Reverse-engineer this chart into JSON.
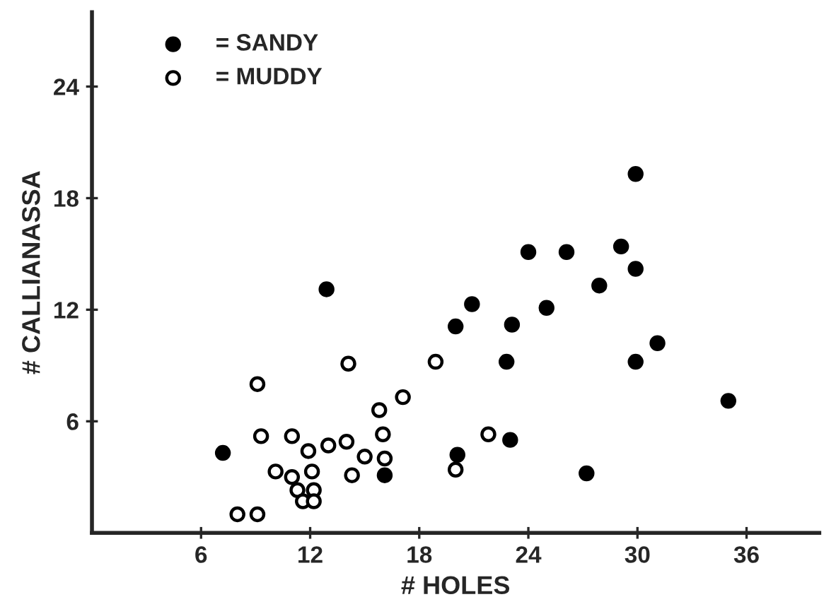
{
  "chart_data": {
    "type": "scatter",
    "xlabel": "# HOLES",
    "ylabel": "# CALLIANASSA",
    "xlim": [
      0,
      40
    ],
    "ylim": [
      0,
      28
    ],
    "xticks": [
      6,
      12,
      18,
      24,
      30,
      36
    ],
    "yticks": [
      6,
      12,
      18,
      24
    ],
    "grid": false,
    "legend": "top left",
    "marker": "circle",
    "series": [
      {
        "name": "= SANDY",
        "color": "#000000",
        "x": [
          7.2,
          12.9,
          16.1,
          29.9,
          24.0,
          26.1,
          29.1,
          29.9,
          27.9,
          20.9,
          25.0,
          20.0,
          23.1,
          22.8,
          29.9,
          31.1,
          35.0,
          23.0,
          20.1,
          27.2
        ],
        "values": [
          4.3,
          13.1,
          3.1,
          19.3,
          15.1,
          15.1,
          15.4,
          14.2,
          13.3,
          12.3,
          12.1,
          11.1,
          11.2,
          9.2,
          9.2,
          10.2,
          7.1,
          5.0,
          4.2,
          3.2
        ]
      },
      {
        "name": "= MUDDY",
        "color": "#ffffff",
        "x": [
          8.0,
          9.1,
          9.1,
          9.3,
          11.0,
          11.9,
          10.1,
          11.0,
          12.1,
          11.3,
          11.6,
          12.2,
          12.2,
          14.1,
          13.0,
          14.0,
          15.0,
          14.3,
          15.8,
          17.1,
          16.0,
          16.1,
          18.9,
          21.8,
          20.0
        ],
        "values": [
          1.0,
          1.0,
          8.0,
          5.2,
          5.2,
          4.4,
          3.3,
          3.0,
          3.3,
          2.3,
          1.7,
          2.3,
          1.7,
          9.1,
          4.7,
          4.9,
          4.1,
          3.1,
          6.6,
          7.3,
          5.3,
          4.0,
          9.2,
          5.3,
          3.4
        ]
      }
    ]
  }
}
